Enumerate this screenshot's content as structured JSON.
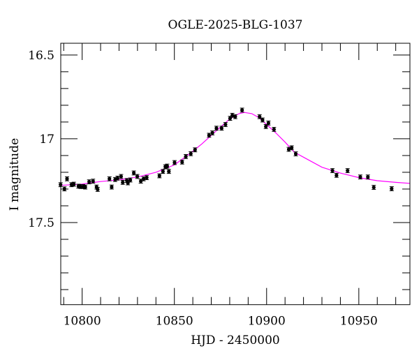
{
  "chart_data": {
    "type": "scatter",
    "title": "OGLE-2025-BLG-1037",
    "xlabel": "HJD - 2450000",
    "ylabel": "I magnitude",
    "xlim": [
      10788.4,
      10977.7
    ],
    "ylim": [
      17.99,
      16.43
    ],
    "y_inverted": true,
    "x_ticks": [
      10800,
      10850,
      10900,
      10950
    ],
    "x_tick_labels": [
      "10800",
      "10850",
      "10900",
      "10950"
    ],
    "x_minor_step": 10,
    "y_ticks": [
      16.5,
      17,
      17.5
    ],
    "y_tick_labels": [
      "16.5",
      "17",
      "17.5"
    ],
    "y_minor_step": 0.1,
    "grid": false,
    "colors": {
      "points": "#000000",
      "errorbars": "#000000",
      "model": "#ff00ff"
    },
    "series": [
      {
        "kind": "points_with_errorbars",
        "error": 0.012,
        "x": [
          10788.3,
          10790.4,
          10791.8,
          10794.2,
          10795.5,
          10798.0,
          10799.2,
          10800.5,
          10801.7,
          10803.8,
          10805.9,
          10807.8,
          10808.4,
          10814.8,
          10816.0,
          10817.9,
          10819.2,
          10821.1,
          10822.0,
          10824.2,
          10824.8,
          10826.1,
          10828.0,
          10829.9,
          10831.8,
          10833.3,
          10835.0,
          10841.9,
          10843.8,
          10845.1,
          10846.1,
          10847.0,
          10850.1,
          10854.2,
          10856.2,
          10858.9,
          10861.2,
          10868.8,
          10870.6,
          10872.8,
          10875.6,
          10877.7,
          10880.2,
          10881.4,
          10883.0,
          10886.7,
          10896.2,
          10897.8,
          10899.6,
          10901.0,
          10904.0,
          10912.0,
          10913.6,
          10915.8,
          10935.7,
          10937.9,
          10943.9,
          10950.8,
          10954.9,
          10958.1,
          10967.8
        ],
        "y": [
          17.274,
          17.299,
          17.239,
          17.274,
          17.271,
          17.283,
          17.285,
          17.285,
          17.288,
          17.257,
          17.253,
          17.288,
          17.302,
          17.239,
          17.288,
          17.243,
          17.235,
          17.225,
          17.26,
          17.249,
          17.263,
          17.246,
          17.204,
          17.225,
          17.253,
          17.239,
          17.232,
          17.221,
          17.195,
          17.167,
          17.163,
          17.195,
          17.142,
          17.139,
          17.106,
          17.089,
          17.066,
          16.979,
          16.965,
          16.937,
          16.937,
          16.915,
          16.878,
          16.86,
          16.868,
          16.829,
          16.868,
          16.888,
          16.927,
          16.906,
          16.944,
          17.063,
          17.054,
          17.09,
          17.19,
          17.218,
          17.19,
          17.228,
          17.228,
          17.29,
          17.298
        ]
      },
      {
        "kind": "model_line",
        "x": [
          10788,
          10800,
          10810,
          10820,
          10830,
          10840,
          10850,
          10860,
          10865,
          10870,
          10875,
          10880,
          10885,
          10888,
          10892,
          10896,
          10900,
          10905,
          10910,
          10915,
          10920,
          10930,
          10940,
          10950,
          10960,
          10970,
          10978
        ],
        "y": [
          17.278,
          17.27,
          17.255,
          17.245,
          17.228,
          17.2,
          17.156,
          17.075,
          17.03,
          16.98,
          16.93,
          16.882,
          16.85,
          16.843,
          16.85,
          16.875,
          16.915,
          16.965,
          17.02,
          17.08,
          17.11,
          17.17,
          17.205,
          17.232,
          17.25,
          17.26,
          17.266
        ]
      }
    ]
  }
}
